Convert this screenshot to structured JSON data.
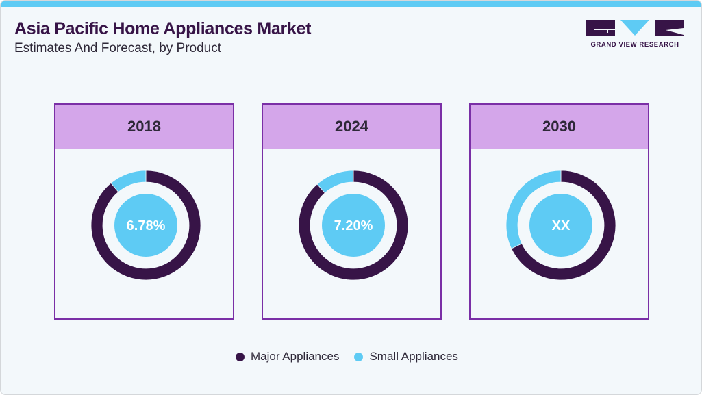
{
  "header": {
    "title": "Asia Pacific Home Appliances Market",
    "subtitle": "Estimates And Forecast, by Product"
  },
  "logo": {
    "text": "GRAND VIEW RESEARCH"
  },
  "colors": {
    "major": "#371447",
    "small": "#5ecbf4",
    "panel_border": "#7a2fa6",
    "panel_header": "#d4a6ea"
  },
  "chart_data": {
    "type": "pie",
    "subtype": "donut",
    "title": "Asia Pacific Home Appliances Market",
    "subtitle": "Estimates And Forecast, by Product",
    "legend": [
      "Major Appliances",
      "Small Appliances"
    ],
    "legend_position": "bottom",
    "panels": [
      {
        "year": "2018",
        "center_label": "6.78%",
        "series": [
          {
            "name": "Major Appliances",
            "value": 89
          },
          {
            "name": "Small Appliances",
            "value": 11
          }
        ]
      },
      {
        "year": "2024",
        "center_label": "7.20%",
        "series": [
          {
            "name": "Major Appliances",
            "value": 88.5
          },
          {
            "name": "Small Appliances",
            "value": 11.5
          }
        ]
      },
      {
        "year": "2030",
        "center_label": "XX",
        "series": [
          {
            "name": "Major Appliances",
            "value": 68
          },
          {
            "name": "Small Appliances",
            "value": 32
          }
        ]
      }
    ]
  }
}
